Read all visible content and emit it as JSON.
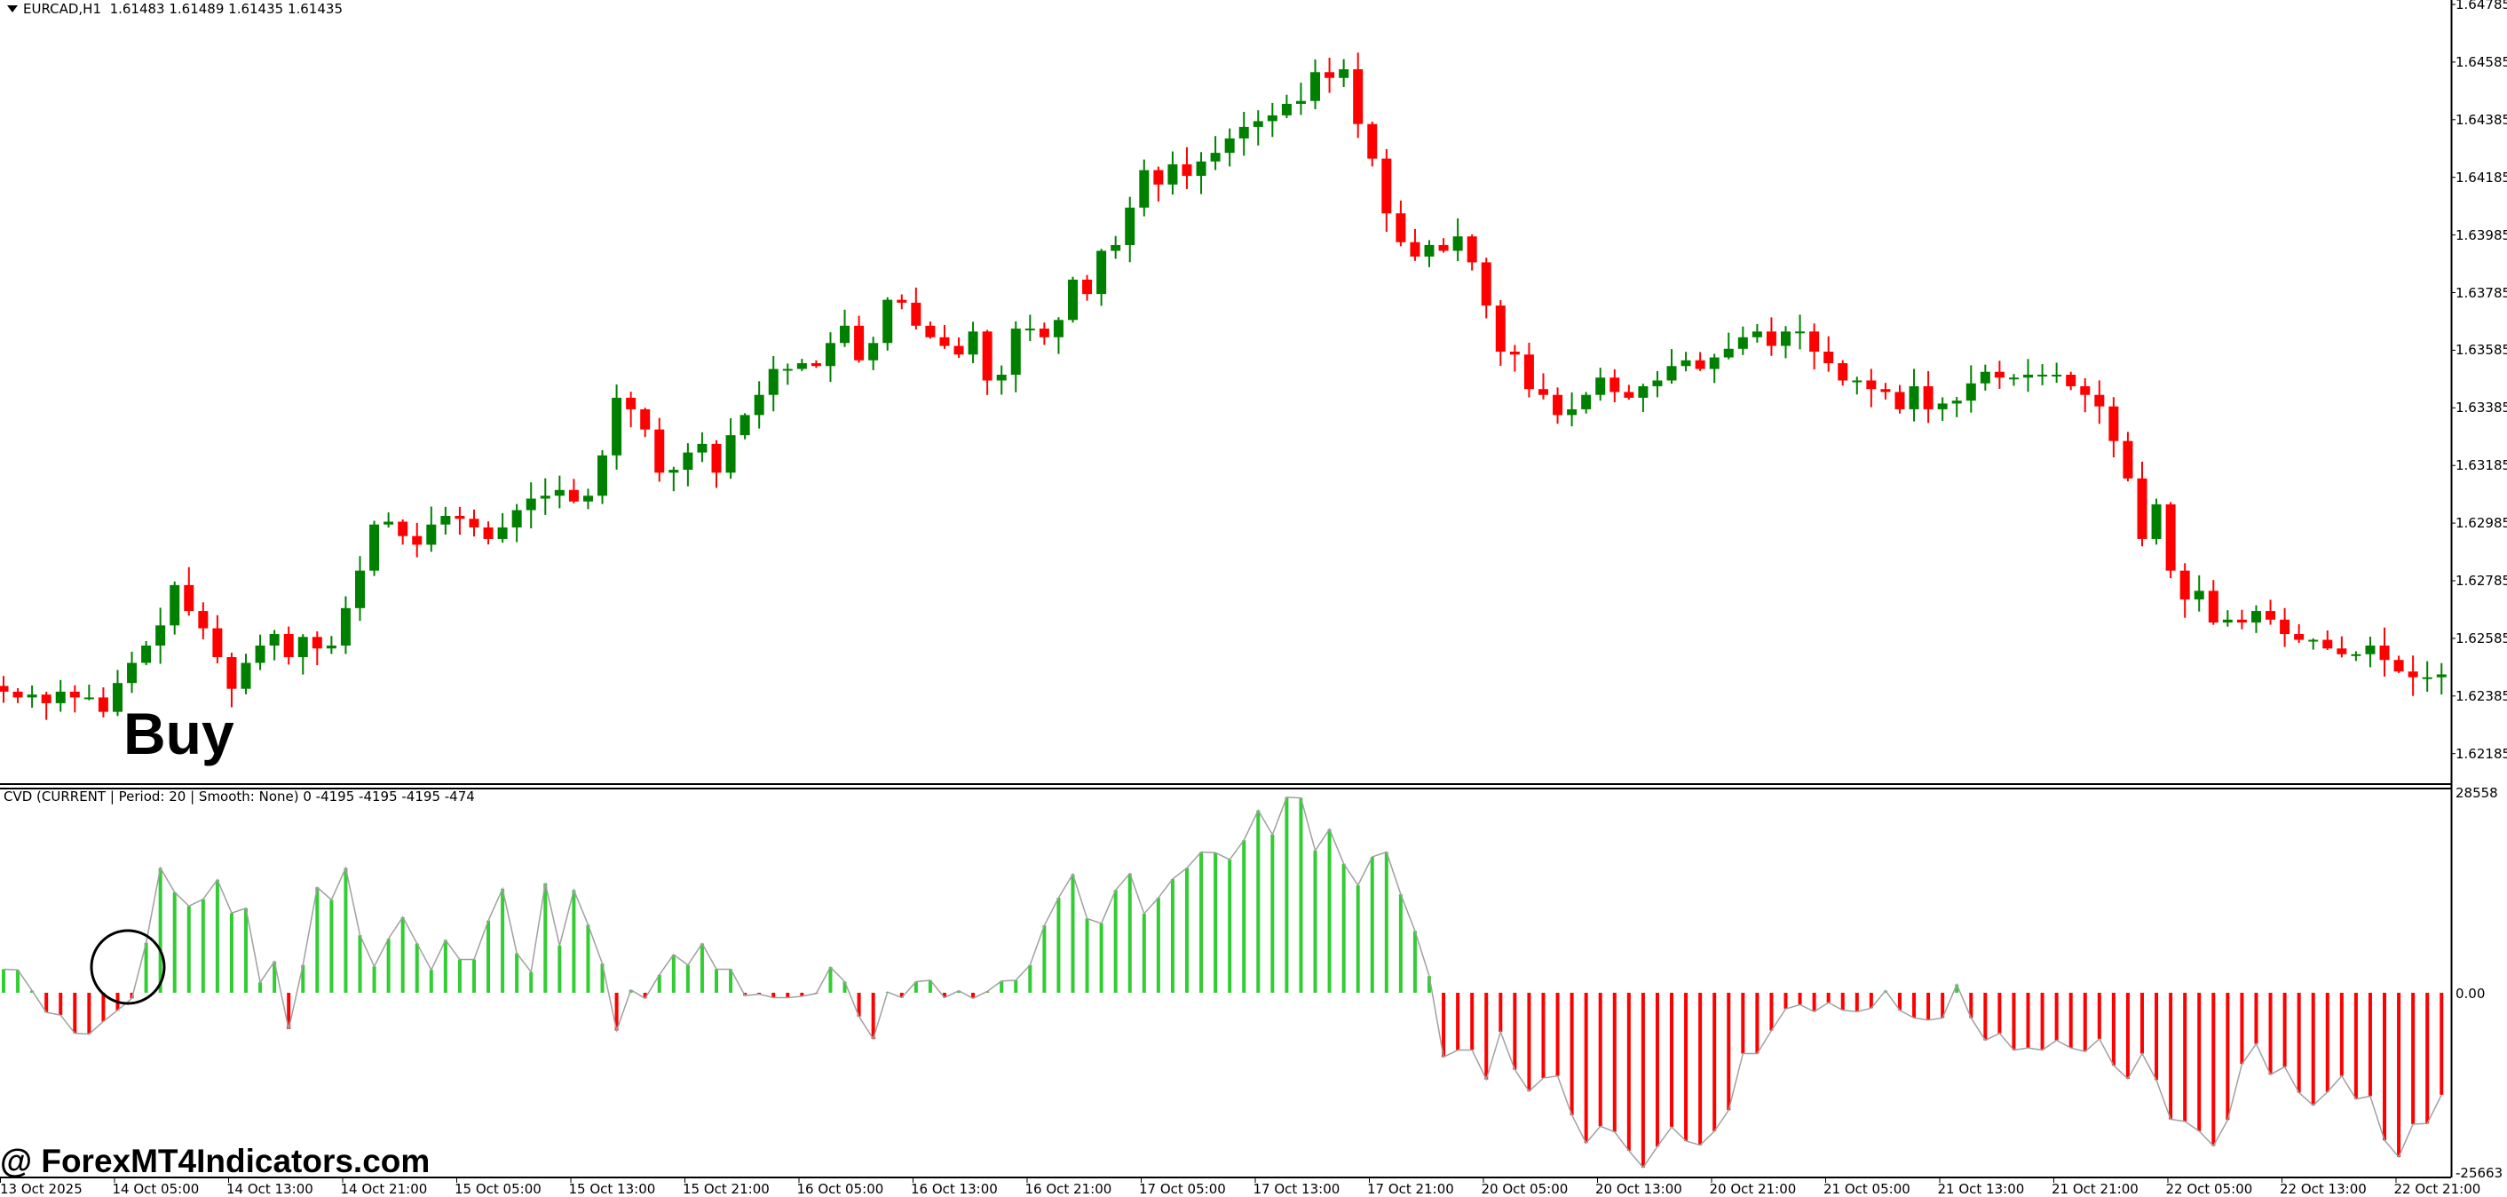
{
  "header": {
    "symbol": "EURCAD,H1",
    "ohlc": "1.61483 1.61489 1.61435 1.61435"
  },
  "indicator": {
    "title": "CVD (CURRENT | Period: 20 | Smooth: None) 0 -4195 -4195 -4195 -474",
    "scale_top": "28558",
    "scale_zero": "0.00",
    "scale_bottom": "-25663"
  },
  "annotation": {
    "label": "Buy",
    "watermark": "@ ForexMT4Indicators.com"
  },
  "colors": {
    "bull": "#008000",
    "bear": "#ff0000",
    "hist_pos": "#32cd32",
    "hist_neg": "#ff0000",
    "cvd_line": "#a0a0a0",
    "axis": "#000000"
  },
  "chart_data": {
    "type": "candlestick",
    "title": "EURCAD,H1",
    "price_axis": {
      "ticks": [
        "1.64785",
        "1.64585",
        "1.64385",
        "1.64185",
        "1.63985",
        "1.63785",
        "1.63585",
        "1.63385",
        "1.63185",
        "1.62985",
        "1.62785",
        "1.62585",
        "1.62385",
        "1.62185"
      ],
      "range": [
        1.6212,
        1.648
      ]
    },
    "time_axis": {
      "ticks": [
        "13 Oct 2025",
        "14 Oct 05:00",
        "14 Oct 13:00",
        "14 Oct 21:00",
        "15 Oct 05:00",
        "15 Oct 13:00",
        "15 Oct 21:00",
        "16 Oct 05:00",
        "16 Oct 13:00",
        "16 Oct 21:00",
        "17 Oct 05:00",
        "17 Oct 13:00",
        "17 Oct 21:00",
        "20 Oct 05:00",
        "20 Oct 13:00",
        "20 Oct 21:00",
        "21 Oct 05:00",
        "21 Oct 13:00",
        "21 Oct 21:00",
        "22 Oct 05:00",
        "22 Oct 13:00",
        "22 Oct 21:00"
      ]
    },
    "closes": [
      1.624,
      1.6238,
      1.6239,
      1.6236,
      1.624,
      1.6238,
      1.6238,
      1.6233,
      1.6243,
      1.625,
      1.6256,
      1.6263,
      1.6277,
      1.6268,
      1.6262,
      1.6252,
      1.6241,
      1.625,
      1.6256,
      1.626,
      1.6252,
      1.6259,
      1.6255,
      1.6256,
      1.6269,
      1.6282,
      1.6298,
      1.6299,
      1.6294,
      1.6291,
      1.6298,
      1.6301,
      1.63,
      1.6297,
      1.6293,
      1.6297,
      1.6303,
      1.6307,
      1.6308,
      1.631,
      1.6306,
      1.6308,
      1.6322,
      1.6342,
      1.6338,
      1.6331,
      1.6316,
      1.6317,
      1.6323,
      1.6326,
      1.6316,
      1.6329,
      1.6336,
      1.6343,
      1.6352,
      1.6352,
      1.6354,
      1.6353,
      1.6361,
      1.6367,
      1.6355,
      1.6361,
      1.6376,
      1.6375,
      1.6367,
      1.6363,
      1.636,
      1.6357,
      1.6365,
      1.6348,
      1.635,
      1.6366,
      1.6366,
      1.6363,
      1.6369,
      1.6383,
      1.6378,
      1.6393,
      1.6395,
      1.6408,
      1.6421,
      1.6416,
      1.6423,
      1.6419,
      1.6424,
      1.6427,
      1.6432,
      1.6436,
      1.6438,
      1.644,
      1.6444,
      1.6445,
      1.6455,
      1.6453,
      1.6456,
      1.6437,
      1.6425,
      1.6406,
      1.6396,
      1.6391,
      1.6395,
      1.6393,
      1.6398,
      1.6389,
      1.6374,
      1.6358,
      1.6357,
      1.6345,
      1.6343,
      1.6336,
      1.6338,
      1.6343,
      1.6349,
      1.6344,
      1.6342,
      1.6346,
      1.6348,
      1.6353,
      1.6355,
      1.6352,
      1.6356,
      1.6359,
      1.6363,
      1.6365,
      1.636,
      1.6365,
      1.6365,
      1.6358,
      1.6354,
      1.6348,
      1.6348,
      1.6345,
      1.6344,
      1.6338,
      1.6346,
      1.6338,
      1.634,
      1.6341,
      1.6347,
      1.6351,
      1.6349,
      1.6349,
      1.635,
      1.635,
      1.635,
      1.6346,
      1.6343,
      1.6339,
      1.6327,
      1.6314,
      1.6293,
      1.6305,
      1.6282,
      1.6272,
      1.6275,
      1.6264,
      1.6265,
      1.6264,
      1.6268,
      1.6265,
      1.626,
      1.6258,
      1.6258,
      1.6255,
      1.6253,
      1.6253,
      1.6256,
      1.6251,
      1.6247,
      1.6245,
      1.6245,
      1.6246,
      1.624,
      1.6242,
      1.6249,
      1.6235,
      1.6234,
      1.6248,
      1.6242,
      1.6245
    ],
    "cvd_values": [
      3400,
      3300,
      300,
      -2800,
      -3200,
      -5800,
      -5900,
      -4100,
      -2500,
      -800,
      7200,
      18000,
      14500,
      12500,
      13500,
      16300,
      11500,
      12200,
      1500,
      4500,
      -5200,
      4000,
      15200,
      13400,
      18000,
      8300,
      3800,
      7800,
      10900,
      7100,
      3300,
      7600,
      4800,
      4800,
      10400,
      15000,
      5700,
      3000,
      15800,
      6800,
      14800,
      9800,
      4200,
      -5400,
      400,
      -800,
      2600,
      5500,
      4000,
      7100,
      3400,
      3400,
      -400,
      -200,
      -700,
      -700,
      -500,
      -100,
      3700,
      1600,
      -3400,
      -6600,
      100,
      -700,
      1600,
      1800,
      -700,
      300,
      -800,
      200,
      1700,
      1800,
      4000,
      9700,
      13700,
      17100,
      10700,
      10000,
      14800,
      17200,
      11400,
      13700,
      16400,
      18000,
      20300,
      20200,
      19200,
      22000,
      26300,
      22800,
      28200,
      28100,
      20500,
      23600,
      18600,
      15500,
      19600,
      20300,
      14200,
      8900,
      2400,
      -9200,
      -8200,
      -8200,
      -12400,
      -5600,
      -11000,
      -14100,
      -12200,
      -11900,
      -17500,
      -21500,
      -19100,
      -19900,
      -22600,
      -25000,
      -22000,
      -19200,
      -21200,
      -21800,
      -19800,
      -16800,
      -8700,
      -8700,
      -5400,
      -2300,
      -1700,
      -2700,
      -1400,
      -2500,
      -2700,
      -2200,
      300,
      -2500,
      -3600,
      -3900,
      -3600,
      1200,
      -3600,
      -6800,
      -5800,
      -8200,
      -7900,
      -8200,
      -6800,
      -7900,
      -8400,
      -6600,
      -10400,
      -12300,
      -8700,
      -12500,
      -18100,
      -18400,
      -19800,
      -21900,
      -18200,
      -10200,
      -7300,
      -11700,
      -10600,
      -14300,
      -16100,
      -14200,
      -11900,
      -15200,
      -14800,
      -21100,
      -23500,
      -18800,
      -18700,
      -14600,
      -12000,
      -11900
    ]
  }
}
